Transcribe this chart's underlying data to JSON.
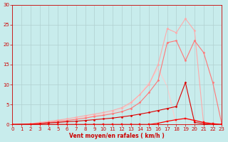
{
  "xlabel": "Vent moyen/en rafales ( km/h )",
  "bg_color": "#c8ecec",
  "grid_color": "#b0d0d0",
  "xlim": [
    0,
    23
  ],
  "ylim": [
    0,
    30
  ],
  "xticks": [
    0,
    1,
    2,
    3,
    4,
    5,
    6,
    7,
    8,
    9,
    10,
    11,
    12,
    13,
    14,
    15,
    16,
    17,
    18,
    19,
    20,
    21,
    22,
    23
  ],
  "yticks": [
    0,
    5,
    10,
    15,
    20,
    25,
    30
  ],
  "lines": [
    {
      "x": [
        0,
        2,
        3,
        4,
        5,
        6,
        7,
        8,
        9,
        10,
        11,
        12,
        13,
        14,
        15,
        16,
        17,
        18,
        19,
        20,
        21,
        22,
        23
      ],
      "y": [
        0,
        0.1,
        0.2,
        0.4,
        0.5,
        0.7,
        0.8,
        1.0,
        1.2,
        1.4,
        1.6,
        1.9,
        2.2,
        2.6,
        3.0,
        3.5,
        4.0,
        4.5,
        10.5,
        0.5,
        0.2,
        0,
        0
      ],
      "color": "#dd0000",
      "lw": 0.8,
      "marker": "D",
      "ms": 1.5,
      "zorder": 5
    },
    {
      "x": [
        0,
        2,
        3,
        4,
        5,
        6,
        7,
        8,
        9,
        10,
        11,
        12,
        13,
        14,
        15,
        16,
        17,
        18,
        19,
        20,
        21,
        22,
        23
      ],
      "y": [
        0,
        0,
        0,
        0,
        0,
        0,
        0,
        0,
        0,
        0,
        0,
        0,
        0,
        0,
        0,
        0.3,
        0.8,
        1.2,
        1.5,
        1.0,
        0.5,
        0.2,
        0
      ],
      "color": "#ff0000",
      "lw": 0.9,
      "marker": "s",
      "ms": 2,
      "zorder": 6
    },
    {
      "x": [
        0,
        2,
        3,
        4,
        5,
        6,
        7,
        8,
        9,
        10,
        11,
        12,
        13,
        14,
        15,
        16,
        17,
        18,
        19,
        20,
        21,
        22,
        23
      ],
      "y": [
        0,
        0.1,
        0.3,
        0.5,
        0.8,
        1.0,
        1.3,
        1.6,
        2.0,
        2.3,
        2.7,
        3.2,
        4.0,
        5.5,
        8.0,
        11.0,
        20.5,
        21.0,
        16.0,
        21.0,
        18.0,
        10.5,
        0
      ],
      "color": "#ff7777",
      "lw": 0.8,
      "marker": "D",
      "ms": 1.5,
      "zorder": 3
    },
    {
      "x": [
        0,
        2,
        3,
        4,
        5,
        6,
        7,
        8,
        9,
        10,
        11,
        12,
        13,
        14,
        15,
        16,
        17,
        18,
        19,
        20,
        21,
        22,
        23
      ],
      "y": [
        0,
        0.2,
        0.5,
        0.8,
        1.1,
        1.4,
        1.8,
        2.2,
        2.6,
        3.0,
        3.5,
        4.2,
        5.5,
        7.5,
        10.0,
        15.0,
        24.0,
        23.0,
        26.5,
        23.5,
        0,
        0,
        0
      ],
      "color": "#ffaaaa",
      "lw": 0.8,
      "marker": "D",
      "ms": 1.5,
      "zorder": 2
    },
    {
      "x": [
        0,
        2,
        3,
        4,
        5,
        6,
        7,
        8,
        9,
        10,
        11,
        12,
        13,
        14,
        15,
        16,
        17,
        18,
        19,
        20,
        21,
        22,
        23
      ],
      "y": [
        0,
        0.1,
        0.3,
        0.5,
        0.8,
        1.0,
        1.4,
        1.8,
        2.2,
        2.6,
        3.1,
        3.8,
        5.2,
        7.5,
        10.5,
        14.0,
        9.5,
        0,
        0,
        0,
        0,
        0,
        0
      ],
      "color": "#ffcccc",
      "lw": 0.8,
      "marker": "none",
      "ms": 0,
      "zorder": 1
    }
  ],
  "xlabel_fontsize": 5.5,
  "tick_fontsize": 5,
  "tick_color": "#cc0000",
  "spine_color": "#cc0000"
}
